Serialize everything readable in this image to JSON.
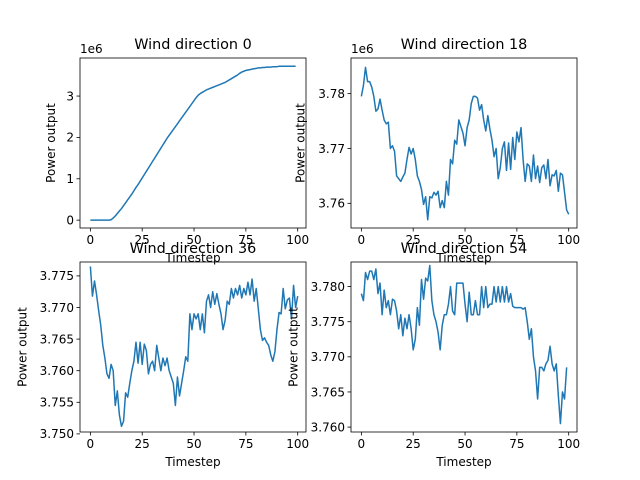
{
  "chart_data": [
    {
      "type": "line",
      "title": "Wind direction 0",
      "xlabel": "Timestep",
      "ylabel": "Power output",
      "offset_label": "1e6",
      "xlim": [
        -5,
        104
      ],
      "ylim": [
        -0.19,
        3.92
      ],
      "xticks": [
        0,
        25,
        50,
        75,
        100
      ],
      "xtick_labels": [
        "0",
        "25",
        "50",
        "75",
        "100"
      ],
      "yticks": [
        0,
        1,
        2,
        3
      ],
      "ytick_labels": [
        "0",
        "1",
        "2",
        "3"
      ],
      "grid": false,
      "color": "#1f77b4",
      "series": [
        {
          "values": [
            0,
            0,
            0,
            0,
            0,
            0,
            0,
            0,
            0,
            0,
            0.01,
            0.05,
            0.1,
            0.16,
            0.22,
            0.28,
            0.35,
            0.42,
            0.49,
            0.56,
            0.63,
            0.71,
            0.79,
            0.86,
            0.94,
            1.02,
            1.1,
            1.18,
            1.26,
            1.34,
            1.42,
            1.5,
            1.58,
            1.66,
            1.74,
            1.82,
            1.9,
            1.98,
            2.05,
            2.12,
            2.19,
            2.26,
            2.33,
            2.4,
            2.47,
            2.54,
            2.61,
            2.68,
            2.75,
            2.82,
            2.89,
            2.96,
            3.02,
            3.06,
            3.09,
            3.12,
            3.15,
            3.17,
            3.19,
            3.21,
            3.23,
            3.25,
            3.27,
            3.29,
            3.31,
            3.33,
            3.36,
            3.39,
            3.42,
            3.45,
            3.48,
            3.51,
            3.55,
            3.58,
            3.6,
            3.62,
            3.63,
            3.64,
            3.65,
            3.66,
            3.67,
            3.68,
            3.68,
            3.69,
            3.69,
            3.7,
            3.7,
            3.7,
            3.71,
            3.71,
            3.71,
            3.72,
            3.72,
            3.72,
            3.72,
            3.72,
            3.72,
            3.72,
            3.72,
            3.72
          ]
        }
      ]
    },
    {
      "type": "line",
      "title": "Wind direction 18",
      "xlabel": "Timestep",
      "ylabel": "Power output",
      "offset_label": "1e6",
      "xlim": [
        -5,
        104
      ],
      "ylim": [
        3.7555,
        3.7865
      ],
      "xticks": [
        0,
        25,
        50,
        75,
        100
      ],
      "xtick_labels": [
        "0",
        "25",
        "50",
        "75",
        "100"
      ],
      "yticks": [
        3.76,
        3.77,
        3.78
      ],
      "ytick_labels": [
        "3.76",
        "3.77",
        "3.78"
      ],
      "grid": false,
      "color": "#1f77b4",
      "series": [
        {
          "values": [
            3.7795,
            3.7815,
            3.7848,
            3.7822,
            3.7822,
            3.7812,
            3.7795,
            3.7768,
            3.7772,
            3.779,
            3.777,
            3.7752,
            3.7745,
            3.7748,
            3.77,
            3.7705,
            3.7695,
            3.765,
            3.7645,
            3.764,
            3.7648,
            3.7655,
            3.768,
            3.7702,
            3.769,
            3.77,
            3.768,
            3.765,
            3.764,
            3.7625,
            3.7598,
            3.7612,
            3.757,
            3.7612,
            3.761,
            3.762,
            3.7615,
            3.7622,
            3.7592,
            3.7605,
            3.7592,
            3.764,
            3.7615,
            3.768,
            3.7672,
            3.7715,
            3.7708,
            3.7752,
            3.774,
            3.7728,
            3.7705,
            3.7738,
            3.7752,
            3.7782,
            3.7795,
            3.7795,
            3.7792,
            3.777,
            3.778,
            3.7752,
            3.7732,
            3.776,
            3.7735,
            3.7715,
            3.7685,
            3.77,
            3.7645,
            3.7665,
            3.77,
            3.7712,
            3.766,
            3.771,
            3.7662,
            3.772,
            3.768,
            3.773,
            3.7712,
            3.7738,
            3.768,
            3.764,
            3.7672,
            3.7668,
            3.764,
            3.7688,
            3.7645,
            3.7668,
            3.7638,
            3.7665,
            3.767,
            3.7645,
            3.768,
            3.7632,
            3.7652,
            3.765,
            3.766,
            3.7622,
            3.7655,
            3.7652,
            3.762,
            3.7588,
            3.758
          ]
        }
      ]
    },
    {
      "type": "line",
      "title": "Wind direction 36",
      "xlabel": "Timestep",
      "ylabel": "Power output",
      "offset_label": "",
      "xlim": [
        -5,
        104
      ],
      "ylim": [
        3.7503,
        3.7772
      ],
      "xticks": [
        0,
        25,
        50,
        75,
        100
      ],
      "xtick_labels": [
        "0",
        "25",
        "50",
        "75",
        "100"
      ],
      "yticks": [
        3.75,
        3.755,
        3.76,
        3.765,
        3.77,
        3.775
      ],
      "ytick_labels": [
        "3.750",
        "3.755",
        "3.760",
        "3.765",
        "3.770",
        "3.775"
      ],
      "grid": false,
      "color": "#1f77b4",
      "series": [
        {
          "values": [
            3.7765,
            3.7718,
            3.7742,
            3.772,
            3.7695,
            3.7672,
            3.764,
            3.762,
            3.7595,
            3.7588,
            3.761,
            3.76,
            3.7545,
            3.7568,
            3.753,
            3.7512,
            3.752,
            3.7565,
            3.7558,
            3.758,
            3.76,
            3.7615,
            3.7645,
            3.7612,
            3.7645,
            3.761,
            3.7642,
            3.7632,
            3.7595,
            3.761,
            3.7615,
            3.76,
            3.764,
            3.762,
            3.76,
            3.762,
            3.7608,
            3.762,
            3.76,
            3.759,
            3.758,
            3.7545,
            3.759,
            3.756,
            3.758,
            3.76,
            3.7622,
            3.7615,
            3.769,
            3.7665,
            3.769,
            3.7682,
            3.769,
            3.7665,
            3.769,
            3.766,
            3.771,
            3.772,
            3.77,
            3.7725,
            3.7705,
            3.7722,
            3.7705,
            3.769,
            3.7665,
            3.768,
            3.771,
            3.7705,
            3.773,
            3.7715,
            3.773,
            3.772,
            3.7735,
            3.7715,
            3.773,
            3.772,
            3.774,
            3.772,
            3.7745,
            3.771,
            3.773,
            3.7698,
            3.7665,
            3.7648,
            3.7652,
            3.7645,
            3.764,
            3.7625,
            3.7615,
            3.763,
            3.7665,
            3.7692,
            3.769,
            3.773,
            3.7698,
            3.7712,
            3.7715,
            3.7682,
            3.7735,
            3.77,
            3.7718
          ]
        }
      ]
    },
    {
      "type": "line",
      "title": "Wind direction 54",
      "xlabel": "Timestep",
      "ylabel": "Power output",
      "offset_label": "",
      "xlim": [
        -5,
        104
      ],
      "ylim": [
        3.7593,
        3.7835
      ],
      "xticks": [
        0,
        25,
        50,
        75,
        100
      ],
      "xtick_labels": [
        "0",
        "25",
        "50",
        "75",
        "100"
      ],
      "yticks": [
        3.76,
        3.765,
        3.77,
        3.775,
        3.78
      ],
      "ytick_labels": [
        "3.760",
        "3.765",
        "3.770",
        "3.775",
        "3.780"
      ],
      "grid": false,
      "color": "#1f77b4",
      "series": [
        {
          "values": [
            3.779,
            3.778,
            3.782,
            3.781,
            3.7822,
            3.7822,
            3.781,
            3.7825,
            3.779,
            3.7805,
            3.776,
            3.7795,
            3.777,
            3.778,
            3.776,
            3.7782,
            3.778,
            3.7765,
            3.774,
            3.776,
            3.773,
            3.7755,
            3.774,
            3.776,
            3.774,
            3.771,
            3.7725,
            3.777,
            3.7745,
            3.781,
            3.7782,
            3.7812,
            3.7808,
            3.783,
            3.778,
            3.776,
            3.775,
            3.7735,
            3.771,
            3.7745,
            3.776,
            3.776,
            3.7775,
            3.78,
            3.7765,
            3.776,
            3.7805,
            3.7805,
            3.7805,
            3.7805,
            3.7775,
            3.775,
            3.7792,
            3.776,
            3.776,
            3.778,
            3.776,
            3.776,
            3.78,
            3.777,
            3.78,
            3.777,
            3.7775,
            3.7775,
            3.78,
            3.7778,
            3.78,
            3.7778,
            3.78,
            3.7778,
            3.78,
            3.7778,
            3.779,
            3.7772,
            3.777,
            3.777,
            3.777,
            3.777,
            3.7768,
            3.777,
            3.775,
            3.7725,
            3.774,
            3.77,
            3.768,
            3.764,
            3.7685,
            3.7685,
            3.768,
            3.769,
            3.7695,
            3.7715,
            3.769,
            3.768,
            3.769,
            3.7645,
            3.7605,
            3.765,
            3.764,
            3.7685
          ]
        }
      ]
    }
  ]
}
